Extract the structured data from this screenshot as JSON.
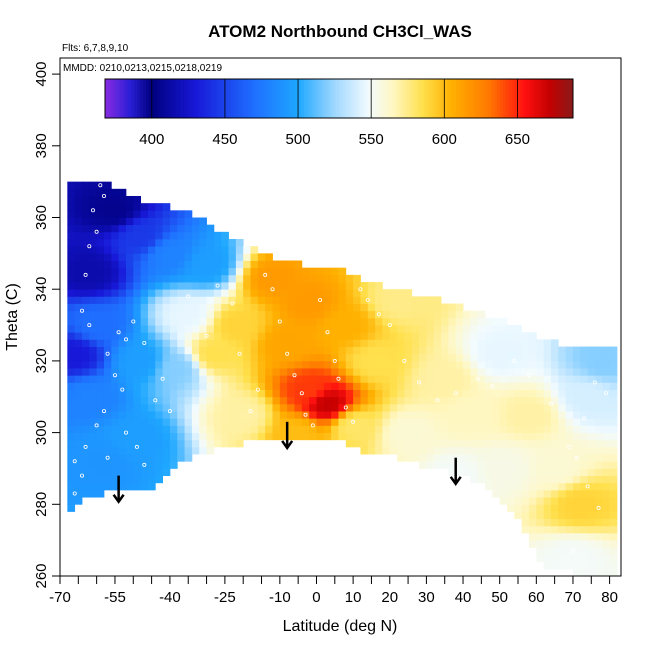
{
  "chart_data": {
    "type": "heatmap",
    "title": "ATOM2 Northbound CH3Cl_WAS",
    "subtitle_lines": [
      "Flts: 6,7,8,9,10",
      "MMDD: 0210,0213,0215,0218,0219"
    ],
    "xlabel": "Latitude (deg N)",
    "ylabel": "Theta (C)",
    "xlim": [
      -70,
      82
    ],
    "ylim": [
      260,
      405
    ],
    "xticks": [
      -70,
      -55,
      -40,
      -25,
      -10,
      0,
      10,
      20,
      30,
      40,
      50,
      60,
      70,
      80
    ],
    "xticks_minor": [
      -65,
      -60,
      -50,
      -45,
      -35,
      -30,
      -20,
      -15,
      -5,
      5,
      15,
      25,
      35,
      45,
      55,
      65,
      75
    ],
    "yticks": [
      260,
      280,
      300,
      320,
      340,
      360,
      380,
      400
    ],
    "colorbar": {
      "ticks": [
        400,
        450,
        500,
        550,
        600,
        650
      ],
      "range": [
        368,
        688
      ],
      "stops": [
        {
          "v": 368,
          "c": "#8a2be2"
        },
        {
          "v": 385,
          "c": "#2a1fd6"
        },
        {
          "v": 400,
          "c": "#000080"
        },
        {
          "v": 430,
          "c": "#1818d8"
        },
        {
          "v": 470,
          "c": "#1f6fff"
        },
        {
          "v": 500,
          "c": "#1ea7ff"
        },
        {
          "v": 525,
          "c": "#9fd8ff"
        },
        {
          "v": 548,
          "c": "#f2fbff"
        },
        {
          "v": 565,
          "c": "#fff7c2"
        },
        {
          "v": 585,
          "c": "#ffe04d"
        },
        {
          "v": 605,
          "c": "#ffb000"
        },
        {
          "v": 630,
          "c": "#ff7a00"
        },
        {
          "v": 655,
          "c": "#ff1010"
        },
        {
          "v": 672,
          "c": "#c40000"
        },
        {
          "v": 688,
          "c": "#8a1a1a"
        }
      ]
    },
    "field_centers": [
      {
        "x": -62,
        "y": 345,
        "v": 415
      },
      {
        "x": -55,
        "y": 362,
        "v": 405
      },
      {
        "x": -48,
        "y": 355,
        "v": 445
      },
      {
        "x": -40,
        "y": 350,
        "v": 480
      },
      {
        "x": -30,
        "y": 347,
        "v": 495
      },
      {
        "x": -66,
        "y": 322,
        "v": 430
      },
      {
        "x": -60,
        "y": 330,
        "v": 470
      },
      {
        "x": -62,
        "y": 310,
        "v": 480
      },
      {
        "x": -58,
        "y": 292,
        "v": 490
      },
      {
        "x": -50,
        "y": 298,
        "v": 495
      },
      {
        "x": -48,
        "y": 320,
        "v": 495
      },
      {
        "x": -38,
        "y": 318,
        "v": 520
      },
      {
        "x": -35,
        "y": 333,
        "v": 545
      },
      {
        "x": -28,
        "y": 322,
        "v": 585
      },
      {
        "x": -22,
        "y": 330,
        "v": 590
      },
      {
        "x": -20,
        "y": 305,
        "v": 570
      },
      {
        "x": -12,
        "y": 343,
        "v": 615
      },
      {
        "x": -8,
        "y": 325,
        "v": 610
      },
      {
        "x": -2,
        "y": 336,
        "v": 615
      },
      {
        "x": 8,
        "y": 330,
        "v": 605
      },
      {
        "x": -2,
        "y": 312,
        "v": 645
      },
      {
        "x": 3,
        "y": 308,
        "v": 672
      },
      {
        "x": -5,
        "y": 300,
        "v": 600
      },
      {
        "x": 10,
        "y": 302,
        "v": 580
      },
      {
        "x": 16,
        "y": 320,
        "v": 585
      },
      {
        "x": 22,
        "y": 337,
        "v": 575
      },
      {
        "x": 25,
        "y": 300,
        "v": 560
      },
      {
        "x": 35,
        "y": 315,
        "v": 570
      },
      {
        "x": 42,
        "y": 305,
        "v": 565
      },
      {
        "x": 50,
        "y": 322,
        "v": 545
      },
      {
        "x": 58,
        "y": 305,
        "v": 570
      },
      {
        "x": 52,
        "y": 290,
        "v": 555
      },
      {
        "x": 65,
        "y": 290,
        "v": 560
      },
      {
        "x": 72,
        "y": 280,
        "v": 590
      },
      {
        "x": 74,
        "y": 310,
        "v": 540
      },
      {
        "x": 78,
        "y": 320,
        "v": 520
      },
      {
        "x": 70,
        "y": 265,
        "v": 550
      },
      {
        "x": 38,
        "y": 288,
        "v": 550
      }
    ],
    "domain_top": [
      [
        -66,
        370
      ],
      [
        -58,
        370
      ],
      [
        -55,
        368
      ],
      [
        -48,
        365
      ],
      [
        -35,
        362
      ],
      [
        -25,
        355
      ],
      [
        -15,
        350
      ],
      [
        -5,
        347
      ],
      [
        5,
        346
      ],
      [
        15,
        342
      ],
      [
        22,
        340
      ],
      [
        30,
        338
      ],
      [
        40,
        335
      ],
      [
        50,
        332
      ],
      [
        58,
        328
      ],
      [
        65,
        325
      ],
      [
        72,
        324
      ],
      [
        80,
        323
      ]
    ],
    "domain_bottom": [
      [
        -68,
        276
      ],
      [
        -66,
        280
      ],
      [
        -58,
        283
      ],
      [
        -45,
        285
      ],
      [
        -35,
        293
      ],
      [
        -25,
        296
      ],
      [
        -15,
        298
      ],
      [
        -8,
        299
      ],
      [
        5,
        299
      ],
      [
        12,
        295
      ],
      [
        22,
        293
      ],
      [
        32,
        290
      ],
      [
        42,
        287
      ],
      [
        48,
        284
      ],
      [
        55,
        276
      ],
      [
        62,
        262
      ],
      [
        70,
        261
      ],
      [
        80,
        260
      ]
    ],
    "sample_points": [
      {
        "x": -59,
        "y": 369
      },
      {
        "x": -58,
        "y": 366
      },
      {
        "x": -61,
        "y": 362
      },
      {
        "x": -60,
        "y": 356
      },
      {
        "x": -62,
        "y": 352
      },
      {
        "x": -63,
        "y": 344
      },
      {
        "x": -64,
        "y": 334
      },
      {
        "x": -62,
        "y": 330
      },
      {
        "x": -54,
        "y": 328
      },
      {
        "x": -52,
        "y": 326
      },
      {
        "x": -50,
        "y": 331
      },
      {
        "x": -47,
        "y": 325
      },
      {
        "x": -57,
        "y": 322
      },
      {
        "x": -55,
        "y": 316
      },
      {
        "x": -53,
        "y": 312
      },
      {
        "x": -58,
        "y": 306
      },
      {
        "x": -60,
        "y": 302
      },
      {
        "x": -63,
        "y": 296
      },
      {
        "x": -66,
        "y": 292
      },
      {
        "x": -64,
        "y": 288
      },
      {
        "x": -66,
        "y": 283
      },
      {
        "x": -57,
        "y": 293
      },
      {
        "x": -52,
        "y": 300
      },
      {
        "x": -49,
        "y": 296
      },
      {
        "x": -47,
        "y": 291
      },
      {
        "x": -44,
        "y": 309
      },
      {
        "x": -42,
        "y": 315
      },
      {
        "x": -40,
        "y": 306
      },
      {
        "x": -35,
        "y": 338
      },
      {
        "x": -30,
        "y": 327
      },
      {
        "x": -27,
        "y": 341
      },
      {
        "x": -23,
        "y": 336
      },
      {
        "x": -21,
        "y": 322
      },
      {
        "x": -18,
        "y": 306
      },
      {
        "x": -16,
        "y": 312
      },
      {
        "x": -14,
        "y": 344
      },
      {
        "x": -12,
        "y": 340
      },
      {
        "x": -10,
        "y": 331
      },
      {
        "x": -8,
        "y": 322
      },
      {
        "x": -6,
        "y": 316
      },
      {
        "x": -4,
        "y": 311
      },
      {
        "x": -3,
        "y": 305
      },
      {
        "x": -1,
        "y": 302
      },
      {
        "x": 1,
        "y": 337
      },
      {
        "x": 3,
        "y": 328
      },
      {
        "x": 5,
        "y": 320
      },
      {
        "x": 6,
        "y": 315
      },
      {
        "x": 8,
        "y": 307
      },
      {
        "x": 10,
        "y": 303
      },
      {
        "x": 12,
        "y": 340
      },
      {
        "x": 14,
        "y": 337
      },
      {
        "x": 17,
        "y": 333
      },
      {
        "x": 20,
        "y": 330
      },
      {
        "x": 24,
        "y": 320
      },
      {
        "x": 28,
        "y": 314
      },
      {
        "x": 33,
        "y": 309
      },
      {
        "x": 38,
        "y": 311
      },
      {
        "x": 44,
        "y": 315
      },
      {
        "x": 48,
        "y": 313
      },
      {
        "x": 54,
        "y": 320
      },
      {
        "x": 58,
        "y": 316
      },
      {
        "x": 64,
        "y": 308
      },
      {
        "x": 69,
        "y": 296
      },
      {
        "x": 71,
        "y": 293
      },
      {
        "x": 73,
        "y": 304
      },
      {
        "x": 76,
        "y": 314
      },
      {
        "x": 79,
        "y": 311
      },
      {
        "x": 74,
        "y": 285
      },
      {
        "x": 77,
        "y": 279
      },
      {
        "x": 70,
        "y": 267
      }
    ],
    "arrows": [
      {
        "x": -54,
        "y_top": 288,
        "y_bottom": 281
      },
      {
        "x": -8,
        "y_top": 303,
        "y_bottom": 296
      },
      {
        "x": 38,
        "y_top": 293,
        "y_bottom": 286
      }
    ]
  }
}
